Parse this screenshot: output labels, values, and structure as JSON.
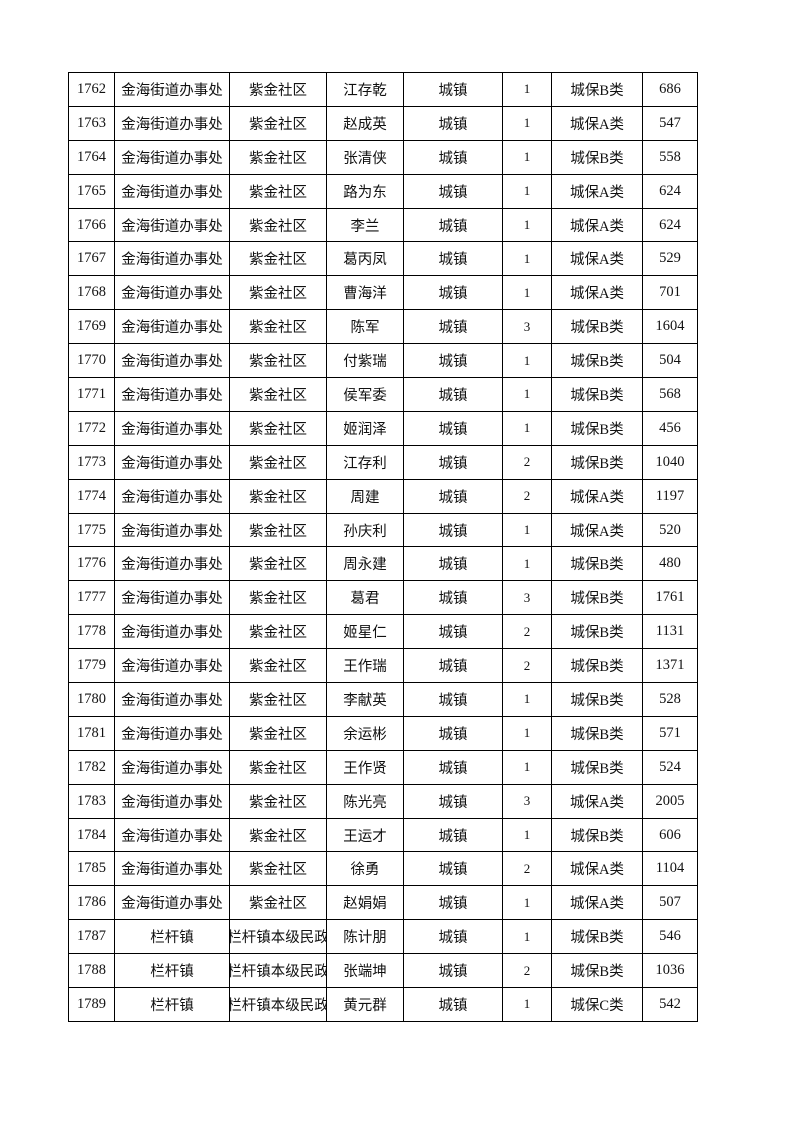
{
  "table": {
    "rows": [
      [
        "1762",
        "金海街道办事处",
        "紫金社区",
        "江存乾",
        "城镇",
        "1",
        "城保B类",
        "686"
      ],
      [
        "1763",
        "金海街道办事处",
        "紫金社区",
        "赵成英",
        "城镇",
        "1",
        "城保A类",
        "547"
      ],
      [
        "1764",
        "金海街道办事处",
        "紫金社区",
        "张清侠",
        "城镇",
        "1",
        "城保B类",
        "558"
      ],
      [
        "1765",
        "金海街道办事处",
        "紫金社区",
        "路为东",
        "城镇",
        "1",
        "城保A类",
        "624"
      ],
      [
        "1766",
        "金海街道办事处",
        "紫金社区",
        "李兰",
        "城镇",
        "1",
        "城保A类",
        "624"
      ],
      [
        "1767",
        "金海街道办事处",
        "紫金社区",
        "葛丙凤",
        "城镇",
        "1",
        "城保A类",
        "529"
      ],
      [
        "1768",
        "金海街道办事处",
        "紫金社区",
        "曹海洋",
        "城镇",
        "1",
        "城保A类",
        "701"
      ],
      [
        "1769",
        "金海街道办事处",
        "紫金社区",
        "陈军",
        "城镇",
        "3",
        "城保B类",
        "1604"
      ],
      [
        "1770",
        "金海街道办事处",
        "紫金社区",
        "付紫瑞",
        "城镇",
        "1",
        "城保B类",
        "504"
      ],
      [
        "1771",
        "金海街道办事处",
        "紫金社区",
        "侯军委",
        "城镇",
        "1",
        "城保B类",
        "568"
      ],
      [
        "1772",
        "金海街道办事处",
        "紫金社区",
        "姬润泽",
        "城镇",
        "1",
        "城保B类",
        "456"
      ],
      [
        "1773",
        "金海街道办事处",
        "紫金社区",
        "江存利",
        "城镇",
        "2",
        "城保B类",
        "1040"
      ],
      [
        "1774",
        "金海街道办事处",
        "紫金社区",
        "周建",
        "城镇",
        "2",
        "城保A类",
        "1197"
      ],
      [
        "1775",
        "金海街道办事处",
        "紫金社区",
        "孙庆利",
        "城镇",
        "1",
        "城保A类",
        "520"
      ],
      [
        "1776",
        "金海街道办事处",
        "紫金社区",
        "周永建",
        "城镇",
        "1",
        "城保B类",
        "480"
      ],
      [
        "1777",
        "金海街道办事处",
        "紫金社区",
        "葛君",
        "城镇",
        "3",
        "城保B类",
        "1761"
      ],
      [
        "1778",
        "金海街道办事处",
        "紫金社区",
        "姬星仁",
        "城镇",
        "2",
        "城保B类",
        "1131"
      ],
      [
        "1779",
        "金海街道办事处",
        "紫金社区",
        "王作瑞",
        "城镇",
        "2",
        "城保B类",
        "1371"
      ],
      [
        "1780",
        "金海街道办事处",
        "紫金社区",
        "李献英",
        "城镇",
        "1",
        "城保B类",
        "528"
      ],
      [
        "1781",
        "金海街道办事处",
        "紫金社区",
        "余运彬",
        "城镇",
        "1",
        "城保B类",
        "571"
      ],
      [
        "1782",
        "金海街道办事处",
        "紫金社区",
        "王作贤",
        "城镇",
        "1",
        "城保B类",
        "524"
      ],
      [
        "1783",
        "金海街道办事处",
        "紫金社区",
        "陈光亮",
        "城镇",
        "3",
        "城保A类",
        "2005"
      ],
      [
        "1784",
        "金海街道办事处",
        "紫金社区",
        "王运才",
        "城镇",
        "1",
        "城保B类",
        "606"
      ],
      [
        "1785",
        "金海街道办事处",
        "紫金社区",
        "徐勇",
        "城镇",
        "2",
        "城保A类",
        "1104"
      ],
      [
        "1786",
        "金海街道办事处",
        "紫金社区",
        "赵娟娟",
        "城镇",
        "1",
        "城保A类",
        "507"
      ],
      [
        "1787",
        "栏杆镇",
        "栏杆镇本级民政",
        "陈计朋",
        "城镇",
        "1",
        "城保B类",
        "546"
      ],
      [
        "1788",
        "栏杆镇",
        "栏杆镇本级民政",
        "张端坤",
        "城镇",
        "2",
        "城保B类",
        "1036"
      ],
      [
        "1789",
        "栏杆镇",
        "栏杆镇本级民政",
        "黄元群",
        "城镇",
        "1",
        "城保C类",
        "542"
      ]
    ]
  }
}
